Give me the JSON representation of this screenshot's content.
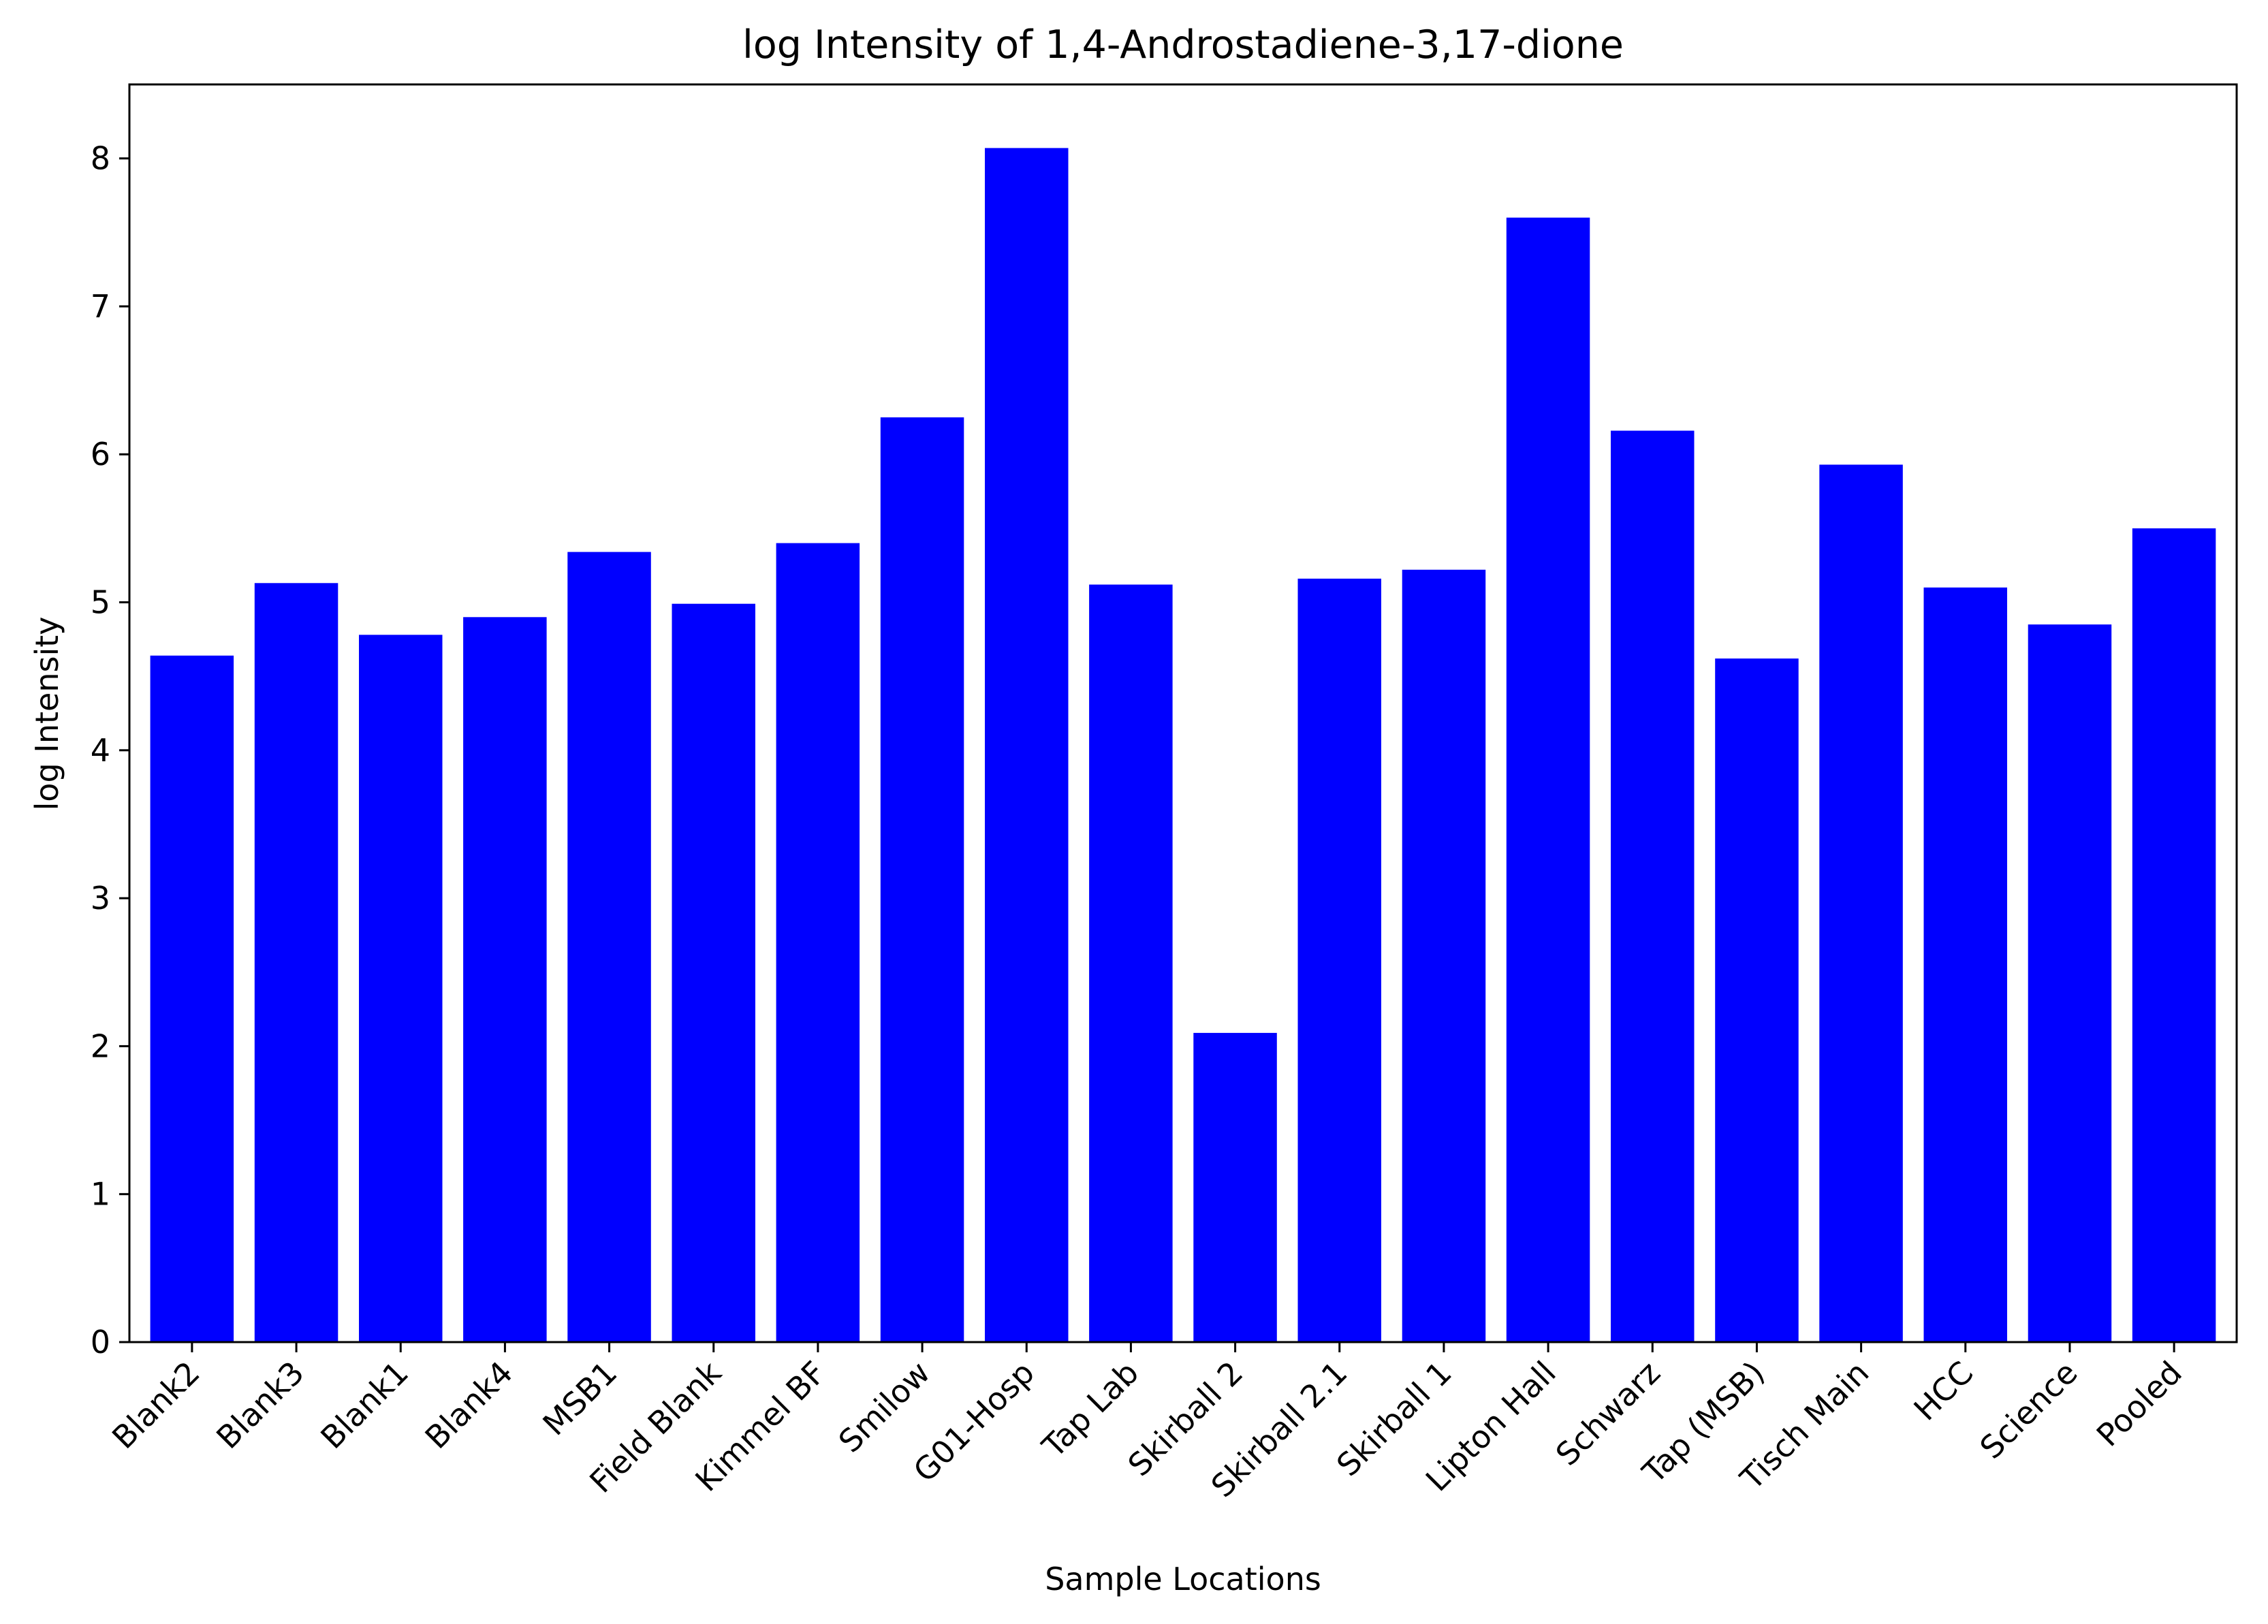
{
  "chart_data": {
    "type": "bar",
    "title": "log Intensity of 1,4-Androstadiene-3,17-dione",
    "xlabel": "Sample Locations",
    "ylabel": "log Intensity",
    "ylim": [
      0,
      8.5
    ],
    "yticks": [
      0,
      1,
      2,
      3,
      4,
      5,
      6,
      7,
      8
    ],
    "grid": false,
    "legend": "none",
    "bar_color": "#0000ff",
    "categories": [
      "Blank2",
      "Blank3",
      "Blank1",
      "Blank4",
      "MSB1",
      "Field Blank",
      "Kimmel BF",
      "Smilow",
      "G01-Hosp",
      "Tap Lab",
      "Skirball 2",
      "Skirball 2.1",
      "Skirball 1",
      "Lipton Hall",
      "Schwarz",
      "Tap (MSB)",
      "Tisch Main",
      "HCC",
      "Science",
      "Pooled"
    ],
    "values": [
      4.64,
      5.13,
      4.78,
      4.9,
      5.34,
      4.99,
      5.4,
      6.25,
      8.07,
      5.12,
      2.09,
      5.16,
      5.22,
      7.6,
      6.16,
      4.62,
      5.93,
      5.1,
      4.85,
      5.5
    ]
  }
}
